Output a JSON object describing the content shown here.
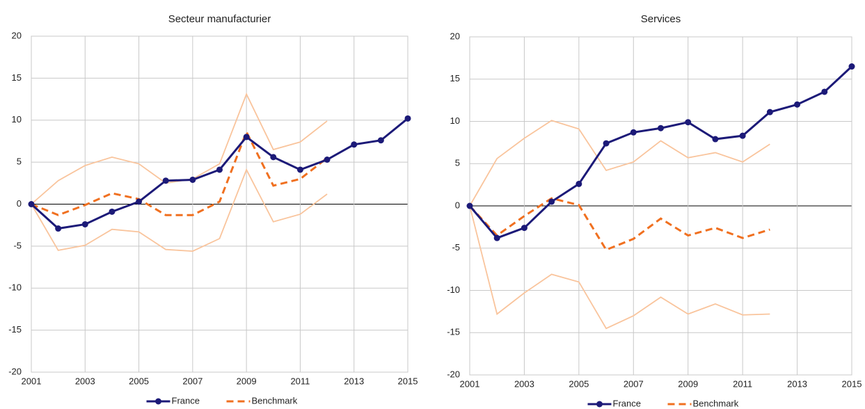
{
  "chart_data": [
    {
      "type": "line",
      "title": "Secteur manufacturier",
      "x": [
        2001,
        2002,
        2003,
        2004,
        2005,
        2006,
        2007,
        2008,
        2009,
        2010,
        2011,
        2012,
        2013,
        2014,
        2015
      ],
      "xlim": [
        2001,
        2015
      ],
      "xticks": [
        2001,
        2003,
        2005,
        2007,
        2009,
        2011,
        2013,
        2015
      ],
      "ylim": [
        -20,
        20
      ],
      "yticks": [
        -20,
        -15,
        -10,
        -5,
        0,
        5,
        10,
        15,
        20
      ],
      "grid": true,
      "series": [
        {
          "color": "#f9c49c",
          "values": [
            0,
            2.8,
            4.6,
            5.6,
            4.8,
            2.5,
            3.0,
            4.8,
            13.1,
            6.5,
            7.4,
            9.9,
            null,
            null,
            null
          ]
        },
        {
          "color": "#f9c49c",
          "values": [
            0,
            -5.5,
            -4.9,
            -3.0,
            -3.3,
            -5.4,
            -5.6,
            -4.1,
            4.1,
            -2.1,
            -1.2,
            1.2,
            null,
            null,
            null
          ]
        },
        {
          "name": "Benchmark",
          "color": "#f07020",
          "dashed": true,
          "values": [
            0,
            -1.3,
            -0.1,
            1.3,
            0.6,
            -1.3,
            -1.3,
            0.3,
            8.6,
            2.2,
            3.0,
            5.5,
            null,
            null,
            null
          ]
        },
        {
          "name": "France",
          "color": "#1c1a78",
          "marker": true,
          "values": [
            0,
            -2.9,
            -2.4,
            -0.9,
            0.3,
            2.8,
            2.9,
            4.1,
            8.0,
            5.6,
            4.1,
            5.3,
            7.1,
            7.6,
            10.2
          ]
        }
      ]
    },
    {
      "type": "line",
      "title": "Services",
      "x": [
        2001,
        2002,
        2003,
        2004,
        2005,
        2006,
        2007,
        2008,
        2009,
        2010,
        2011,
        2012,
        2013,
        2014,
        2015
      ],
      "xlim": [
        2001,
        2015
      ],
      "xticks": [
        2001,
        2003,
        2005,
        2007,
        2009,
        2011,
        2013,
        2015
      ],
      "ylim": [
        -20,
        20
      ],
      "yticks": [
        -20,
        -15,
        -10,
        -5,
        0,
        5,
        10,
        15,
        20
      ],
      "grid": true,
      "series": [
        {
          "color": "#f9c49c",
          "values": [
            0,
            5.6,
            8.0,
            10.1,
            9.1,
            4.2,
            5.2,
            7.7,
            5.7,
            6.3,
            5.2,
            7.3,
            null,
            null,
            null
          ]
        },
        {
          "color": "#f9c49c",
          "values": [
            0,
            -12.8,
            -10.3,
            -8.1,
            -9.0,
            -14.5,
            -13.0,
            -10.8,
            -12.8,
            -11.6,
            -12.9,
            -12.8,
            null,
            null,
            null
          ]
        },
        {
          "name": "Benchmark",
          "color": "#f07020",
          "dashed": true,
          "values": [
            0,
            -3.5,
            -1.2,
            0.9,
            0.1,
            -5.2,
            -3.9,
            -1.5,
            -3.5,
            -2.6,
            -3.8,
            -2.8,
            null,
            null,
            null
          ]
        },
        {
          "name": "France",
          "color": "#1c1a78",
          "marker": true,
          "values": [
            0,
            -3.8,
            -2.6,
            0.5,
            2.6,
            7.4,
            8.7,
            9.2,
            9.9,
            7.9,
            8.3,
            11.1,
            12.0,
            13.5,
            16.5
          ]
        }
      ]
    }
  ]
}
